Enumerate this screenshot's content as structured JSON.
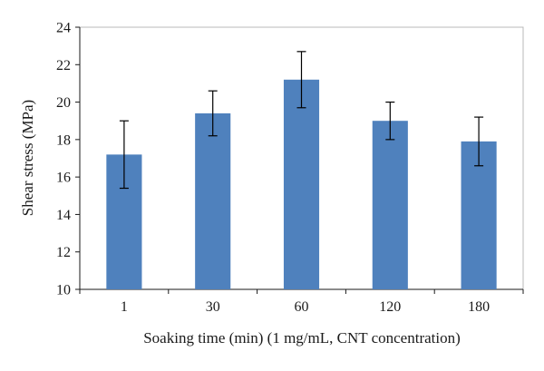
{
  "chart_data": {
    "type": "bar",
    "categories": [
      "1",
      "30",
      "60",
      "120",
      "180"
    ],
    "series": [
      {
        "values": [
          17.2,
          19.4,
          21.2,
          19.0,
          17.9
        ],
        "error_high": [
          19.0,
          20.6,
          22.7,
          20.0,
          19.2
        ],
        "error_low": [
          15.4,
          18.2,
          19.7,
          18.0,
          16.6
        ],
        "color": "#4f81bd"
      }
    ],
    "xlabel": "Soaking time (min) (1 mg/mL, CNT concentration)",
    "ylabel": "Shear stress (MPa)",
    "ylim": [
      10,
      24
    ],
    "yticks": [
      "10",
      "12",
      "14",
      "16",
      "18",
      "20",
      "22",
      "24"
    ],
    "grid": false,
    "legend": "none"
  }
}
